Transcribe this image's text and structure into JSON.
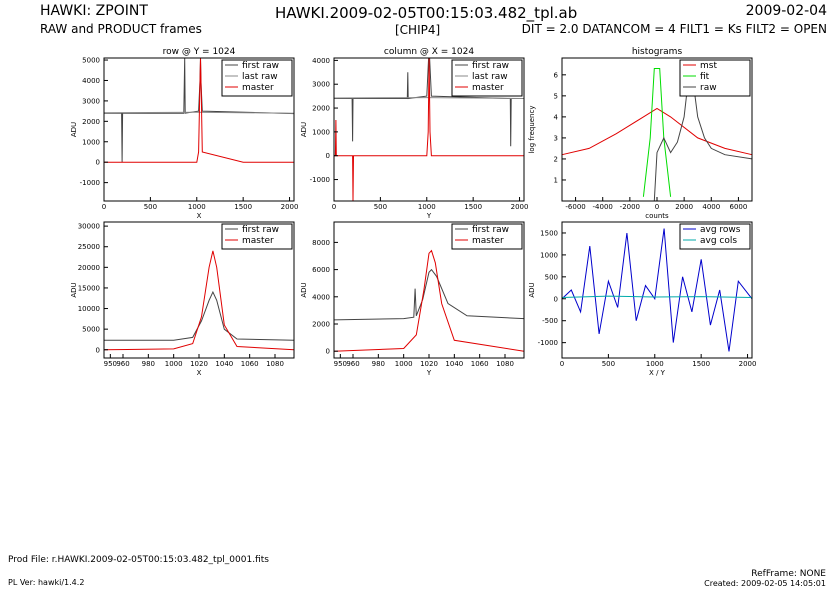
{
  "header": {
    "title_left": "HAWKI: ZPOINT",
    "subtitle_left": "RAW and PRODUCT frames",
    "title_center": "HAWKI.2009-02-05T00:15:03.482_tpl.ab",
    "chip": "[CHIP4]",
    "title_right": "2009-02-04",
    "subtitle_right": "DIT = 2.0 DATANCOM = 4 FILT1 = Ks FILT2 = OPEN"
  },
  "footer": {
    "prod_file": "Prod File: r.HAWKI.2009-02-05T00:15:03.482_tpl_0001.fits",
    "pl_ver": "PL Ver: hawki/1.4.2",
    "refframe": "RefFrame: NONE",
    "created": "Created: 2009-02-05 14:05:01"
  },
  "colors": {
    "first_raw": "#444444",
    "last_raw": "#888888",
    "master": "#e00000",
    "fit": "#00dd00",
    "avg_rows": "#0000cc",
    "avg_cols": "#00aaaa"
  },
  "chart_data": [
    {
      "id": "row-profile",
      "type": "line",
      "title": "row @ Y = 1024",
      "xlabel": "X",
      "ylabel": "ADU",
      "xlim": [
        0,
        2048
      ],
      "ylim": [
        -1900,
        5100
      ],
      "xticks": [
        0,
        500,
        1000,
        1500,
        2000
      ],
      "yticks": [
        -1000,
        0,
        1000,
        2000,
        3000,
        4000,
        5000
      ],
      "legend": "top-right",
      "series": [
        {
          "name": "first raw",
          "color_key": "first_raw",
          "values_desc": "baseline ~2400 ADU with spikes at 195, 870, 1040",
          "x": [
            0,
            190,
            195,
            200,
            860,
            870,
            875,
            1020,
            1035,
            1040,
            1045,
            1060,
            2048
          ],
          "y": [
            2400,
            2400,
            0,
            2400,
            2400,
            5100,
            2400,
            2500,
            4000,
            5100,
            4000,
            2500,
            2380
          ]
        },
        {
          "name": "last raw",
          "color_key": "last_raw",
          "x": [
            0,
            500,
            1000,
            1500,
            2048
          ],
          "y": [
            2420,
            2430,
            2440,
            2420,
            2400
          ]
        },
        {
          "name": "master",
          "color_key": "master",
          "x": [
            0,
            500,
            1000,
            1020,
            1030,
            1040,
            1050,
            1060,
            1500,
            2048
          ],
          "y": [
            0,
            0,
            0,
            500,
            3000,
            5100,
            3000,
            500,
            0,
            0
          ]
        }
      ]
    },
    {
      "id": "column-profile",
      "type": "line",
      "title": "column @ X = 1024",
      "xlabel": "Y",
      "ylabel": "ADU",
      "xlim": [
        0,
        2048
      ],
      "ylim": [
        -1900,
        4100
      ],
      "xticks": [
        0,
        500,
        1000,
        1500,
        2000
      ],
      "yticks": [
        -1000,
        0,
        1000,
        2000,
        3000,
        4000
      ],
      "legend": "top-right",
      "series": [
        {
          "name": "first raw",
          "color_key": "first_raw",
          "x": [
            0,
            195,
            200,
            205,
            790,
            795,
            800,
            1000,
            1020,
            1025,
            1030,
            1050,
            1900,
            1905,
            1910,
            2048
          ],
          "y": [
            2400,
            2400,
            600,
            2400,
            2400,
            3500,
            2400,
            2500,
            4100,
            4100,
            4100,
            2500,
            2400,
            400,
            2400,
            2400
          ]
        },
        {
          "name": "last raw",
          "color_key": "last_raw",
          "x": [
            0,
            500,
            1000,
            1500,
            2048
          ],
          "y": [
            2420,
            2430,
            2440,
            2420,
            2400
          ]
        },
        {
          "name": "master",
          "color_key": "master",
          "x": [
            0,
            15,
            20,
            25,
            200,
            205,
            210,
            1000,
            1015,
            1025,
            1035,
            1050,
            2048
          ],
          "y": [
            0,
            0,
            1500,
            0,
            0,
            -1900,
            0,
            0,
            1000,
            4100,
            1000,
            0,
            0
          ]
        }
      ]
    },
    {
      "id": "histograms",
      "type": "line",
      "title": "histograms",
      "xlabel": "counts",
      "ylabel": "log frequency",
      "xlim": [
        -7000,
        7000
      ],
      "ylim": [
        0,
        6.8
      ],
      "xticks": [
        -6000,
        -4000,
        -2000,
        0,
        2000,
        4000,
        6000
      ],
      "yticks": [
        1,
        2,
        3,
        4,
        5,
        6
      ],
      "legend": "top-right",
      "series": [
        {
          "name": "mst",
          "color_key": "master",
          "x": [
            -7000,
            -5000,
            -3000,
            -1000,
            0,
            1000,
            3000,
            5000,
            7000
          ],
          "y": [
            2.2,
            2.5,
            3.2,
            4.0,
            4.4,
            4.0,
            3.0,
            2.5,
            2.2
          ]
        },
        {
          "name": "fit",
          "color_key": "fit",
          "x": [
            -1000,
            -500,
            -200,
            0,
            200,
            500,
            1000
          ],
          "y": [
            0.2,
            3.0,
            6.3,
            6.3,
            6.3,
            3.0,
            0.2
          ]
        },
        {
          "name": "raw",
          "color_key": "first_raw",
          "x": [
            -200,
            0,
            500,
            1000,
            1500,
            2000,
            2400,
            2600,
            2800,
            3000,
            3500,
            4000,
            5000,
            7000
          ],
          "y": [
            0,
            2.3,
            3.0,
            2.3,
            2.8,
            4.0,
            6.3,
            6.1,
            5.0,
            4.0,
            3.0,
            2.5,
            2.2,
            2.0
          ]
        }
      ]
    },
    {
      "id": "row-zoom",
      "type": "line",
      "title": "",
      "xlabel": "X",
      "ylabel": "ADU",
      "xlim": [
        945,
        1095
      ],
      "ylim": [
        -2000,
        31000
      ],
      "xticks": [
        950,
        960,
        980,
        1000,
        1020,
        1040,
        1060,
        1080
      ],
      "yticks": [
        0,
        5000,
        10000,
        15000,
        20000,
        25000,
        30000
      ],
      "legend": "top-right",
      "series": [
        {
          "name": "first raw",
          "color_key": "first_raw",
          "x": [
            945,
            1000,
            1015,
            1022,
            1028,
            1031,
            1034,
            1040,
            1050,
            1095
          ],
          "y": [
            2300,
            2300,
            3000,
            7000,
            12000,
            14000,
            12000,
            5000,
            2600,
            2300
          ]
        },
        {
          "name": "master",
          "color_key": "master",
          "x": [
            945,
            1000,
            1015,
            1022,
            1028,
            1031,
            1034,
            1040,
            1050,
            1095
          ],
          "y": [
            0,
            200,
            1500,
            8000,
            20000,
            24000,
            20000,
            6000,
            800,
            0
          ]
        }
      ]
    },
    {
      "id": "column-zoom",
      "type": "line",
      "title": "",
      "xlabel": "Y",
      "ylabel": "ADU",
      "xlim": [
        945,
        1095
      ],
      "ylim": [
        -500,
        9500
      ],
      "xticks": [
        950,
        960,
        980,
        1000,
        1020,
        1040,
        1060,
        1080
      ],
      "yticks": [
        0,
        2000,
        4000,
        6000,
        8000
      ],
      "legend": "top-right",
      "series": [
        {
          "name": "first raw",
          "color_key": "first_raw",
          "x": [
            945,
            1000,
            1008,
            1009,
            1010,
            1015,
            1020,
            1022,
            1026,
            1035,
            1050,
            1095
          ],
          "y": [
            2300,
            2400,
            2500,
            4600,
            2600,
            3800,
            5800,
            6000,
            5500,
            3500,
            2600,
            2400
          ]
        },
        {
          "name": "master",
          "color_key": "master",
          "x": [
            945,
            1000,
            1010,
            1016,
            1020,
            1022,
            1025,
            1030,
            1040,
            1095
          ],
          "y": [
            0,
            200,
            1200,
            4500,
            7200,
            7400,
            6500,
            3500,
            800,
            0
          ]
        }
      ]
    },
    {
      "id": "averages",
      "type": "line",
      "title": "",
      "xlabel": "X / Y",
      "ylabel": "ADU",
      "xlim": [
        0,
        2048
      ],
      "ylim": [
        -1350,
        1750
      ],
      "xticks": [
        0,
        500,
        1000,
        1500,
        2000
      ],
      "yticks": [
        -1000,
        -500,
        0,
        500,
        1000,
        1500
      ],
      "legend": "top-right",
      "series": [
        {
          "name": "avg rows",
          "color_key": "avg_rows",
          "x": [
            0,
            100,
            200,
            300,
            400,
            500,
            600,
            700,
            800,
            900,
            1000,
            1100,
            1200,
            1300,
            1400,
            1500,
            1600,
            1700,
            1800,
            1900,
            2048
          ],
          "y": [
            0,
            200,
            -300,
            1200,
            -800,
            400,
            -200,
            1500,
            -500,
            300,
            0,
            1600,
            -1000,
            500,
            -300,
            900,
            -600,
            200,
            -1200,
            400,
            0
          ]
        },
        {
          "name": "avg cols",
          "color_key": "avg_cols",
          "x": [
            0,
            500,
            1000,
            1500,
            2048
          ],
          "y": [
            30,
            60,
            40,
            50,
            30
          ]
        }
      ]
    }
  ]
}
